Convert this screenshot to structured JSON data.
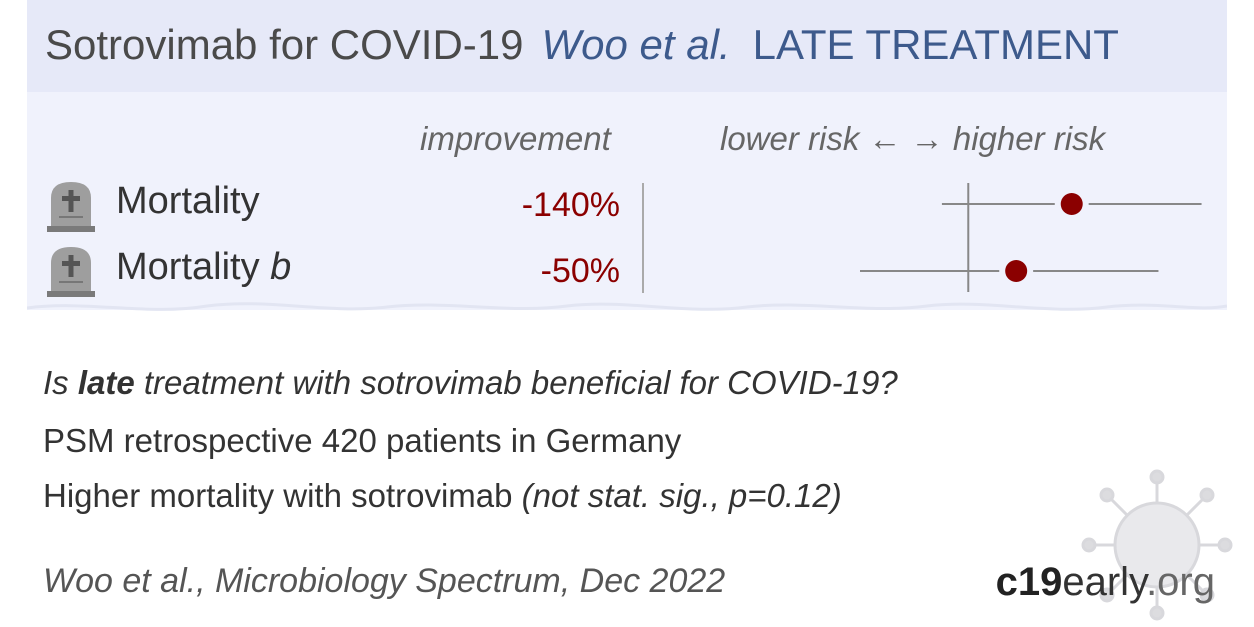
{
  "header": {
    "drug_title": "Sotrovimab for COVID-19",
    "author": "Woo et al.",
    "stage": "LATE TREATMENT"
  },
  "columns": {
    "improvement": "improvement",
    "risk_axis": "lower risk ← → higher risk"
  },
  "chart_data": {
    "type": "forest",
    "outcomes": [
      {
        "label": "Mortality",
        "label_suffix": "",
        "improvement": "-140%",
        "rr": 2.4,
        "ci": [
          0.8,
          7.2
        ],
        "icon": "tombstone-icon"
      },
      {
        "label": "Mortality ",
        "label_suffix": "b",
        "improvement": "-50%",
        "rr": 1.5,
        "ci": [
          0.4,
          5.0
        ],
        "icon": "tombstone-icon"
      }
    ],
    "reference_line": 1.0,
    "scale": "log",
    "point_color": "#8b0000"
  },
  "summary": {
    "question_pre": "Is ",
    "question_bold": "late",
    "question_post": " treatment with sotrovimab beneficial for COVID-19?",
    "design": "PSM retrospective 420 patients in Germany",
    "result_main": "Higher mortality with sotrovimab ",
    "result_note": "(not stat. sig., p=0.12)"
  },
  "citation": "Woo et al., Microbiology Spectrum, Dec 2022",
  "brand": {
    "bold": "c19",
    "mid": "early",
    "tail": ".org"
  },
  "colors": {
    "header_bg": "#e6e9f8",
    "panel_bg": "#f0f2fc",
    "accent": "#3d5a8c",
    "negative": "#8b0000"
  }
}
